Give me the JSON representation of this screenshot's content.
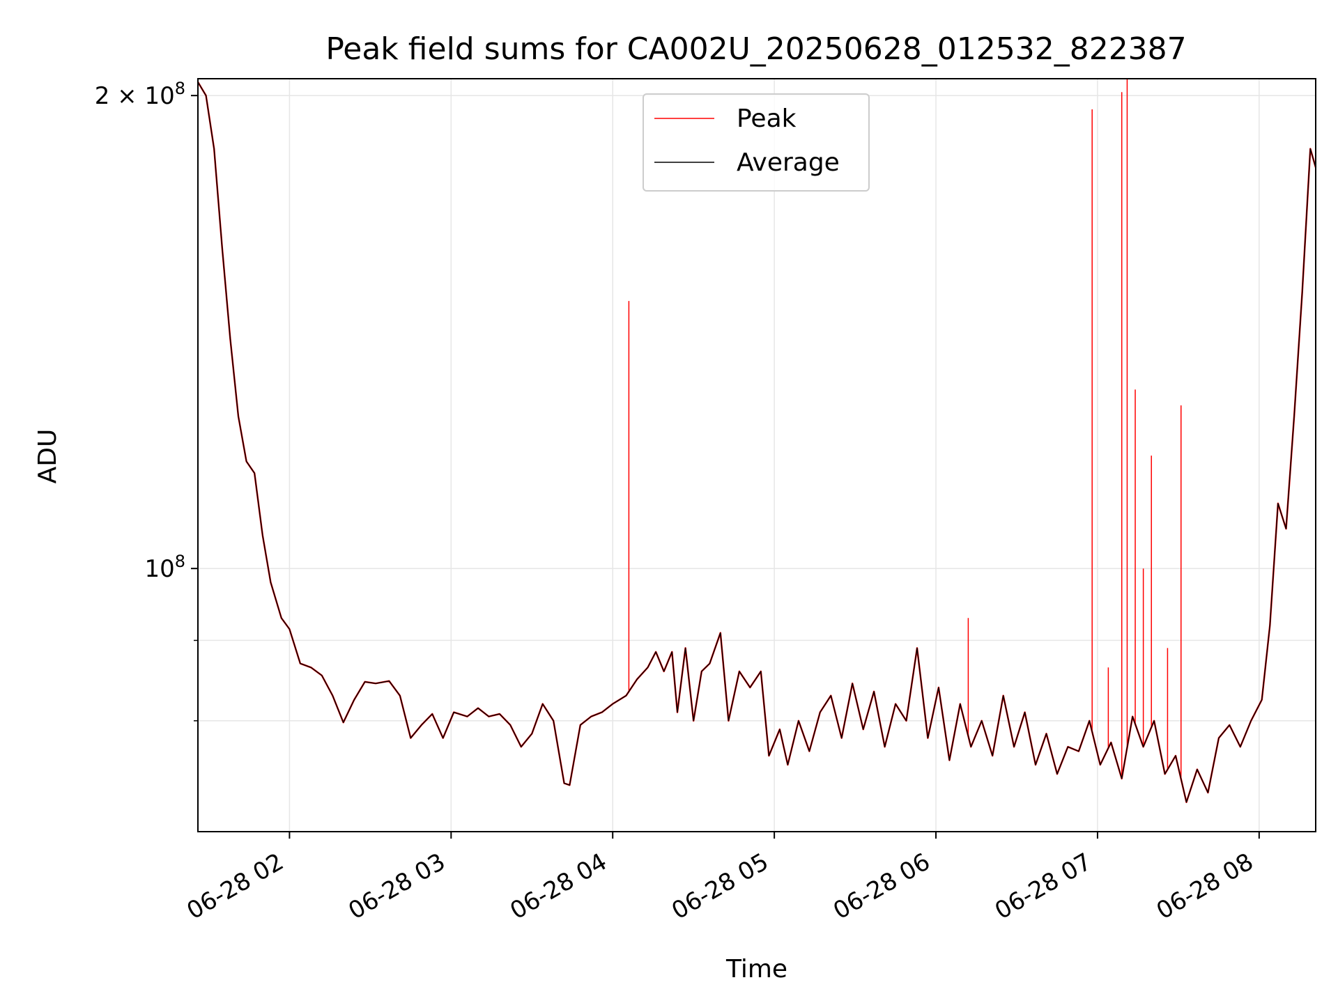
{
  "chart_data": {
    "type": "line",
    "title": "Peak field sums for CA002U_20250628_012532_822387",
    "xlabel": "Time",
    "ylabel": "ADU",
    "yscale": "log",
    "xlim": [
      "2025-06-28 01:26",
      "2025-06-28 08:21"
    ],
    "ylim": [
      68000000,
      205000000
    ],
    "grid": true,
    "legend_position": "top-center",
    "x_ticks": [
      {
        "t": "2025-06-28 02:00",
        "label": "06-28 02"
      },
      {
        "t": "2025-06-28 03:00",
        "label": "06-28 03"
      },
      {
        "t": "2025-06-28 04:00",
        "label": "06-28 04"
      },
      {
        "t": "2025-06-28 05:00",
        "label": "06-28 05"
      },
      {
        "t": "2025-06-28 06:00",
        "label": "06-28 06"
      },
      {
        "t": "2025-06-28 07:00",
        "label": "06-28 07"
      },
      {
        "t": "2025-06-28 08:00",
        "label": "06-28 08"
      }
    ],
    "y_ticks_major": [
      {
        "value": 100000000,
        "base": "10",
        "exp": "8",
        "coef": ""
      },
      {
        "value": 200000000,
        "base": "10",
        "exp": "8",
        "coef": "2 × "
      }
    ],
    "y_ticks_minor": [
      80000000,
      90000000
    ],
    "series": [
      {
        "name": "Average",
        "color": "#000000",
        "points": [
          [
            "2025-06-28 01:26",
            204000000
          ],
          [
            "2025-06-28 01:29",
            200000000
          ],
          [
            "2025-06-28 01:32",
            185000000
          ],
          [
            "2025-06-28 01:35",
            160000000
          ],
          [
            "2025-06-28 01:38",
            140000000
          ],
          [
            "2025-06-28 01:41",
            125000000
          ],
          [
            "2025-06-28 01:44",
            117000000
          ],
          [
            "2025-06-28 01:47",
            115000000
          ],
          [
            "2025-06-28 01:50",
            105000000
          ],
          [
            "2025-06-28 01:53",
            98000000
          ],
          [
            "2025-06-28 01:57",
            93000000
          ],
          [
            "2025-06-28 02:00",
            91500000
          ],
          [
            "2025-06-28 02:04",
            87000000
          ],
          [
            "2025-06-28 02:08",
            86500000
          ],
          [
            "2025-06-28 02:12",
            85500000
          ],
          [
            "2025-06-28 02:16",
            83000000
          ],
          [
            "2025-06-28 02:20",
            79800000
          ],
          [
            "2025-06-28 02:24",
            82500000
          ],
          [
            "2025-06-28 02:28",
            84700000
          ],
          [
            "2025-06-28 02:32",
            84500000
          ],
          [
            "2025-06-28 02:37",
            84800000
          ],
          [
            "2025-06-28 02:41",
            83000000
          ],
          [
            "2025-06-28 02:45",
            78000000
          ],
          [
            "2025-06-28 02:49",
            79500000
          ],
          [
            "2025-06-28 02:53",
            80800000
          ],
          [
            "2025-06-28 02:57",
            78000000
          ],
          [
            "2025-06-28 03:01",
            81000000
          ],
          [
            "2025-06-28 03:06",
            80500000
          ],
          [
            "2025-06-28 03:10",
            81500000
          ],
          [
            "2025-06-28 03:14",
            80500000
          ],
          [
            "2025-06-28 03:18",
            80800000
          ],
          [
            "2025-06-28 03:22",
            79500000
          ],
          [
            "2025-06-28 03:26",
            77000000
          ],
          [
            "2025-06-28 03:30",
            78500000
          ],
          [
            "2025-06-28 03:34",
            82000000
          ],
          [
            "2025-06-28 03:38",
            80000000
          ],
          [
            "2025-06-28 03:42",
            73000000
          ],
          [
            "2025-06-28 03:44",
            72800000
          ],
          [
            "2025-06-28 03:48",
            79500000
          ],
          [
            "2025-06-28 03:52",
            80500000
          ],
          [
            "2025-06-28 03:56",
            81000000
          ],
          [
            "2025-06-28 04:00",
            82000000
          ],
          [
            "2025-06-28 04:05",
            83000000
          ],
          [
            "2025-06-28 04:09",
            85000000
          ],
          [
            "2025-06-28 04:13",
            86500000
          ],
          [
            "2025-06-28 04:16",
            88500000
          ],
          [
            "2025-06-28 04:19",
            86000000
          ],
          [
            "2025-06-28 04:22",
            88500000
          ],
          [
            "2025-06-28 04:24",
            81000000
          ],
          [
            "2025-06-28 04:27",
            89000000
          ],
          [
            "2025-06-28 04:30",
            80000000
          ],
          [
            "2025-06-28 04:33",
            86000000
          ],
          [
            "2025-06-28 04:36",
            87000000
          ],
          [
            "2025-06-28 04:40",
            91000000
          ],
          [
            "2025-06-28 04:43",
            80000000
          ],
          [
            "2025-06-28 04:47",
            86000000
          ],
          [
            "2025-06-28 04:51",
            84000000
          ],
          [
            "2025-06-28 04:55",
            86000000
          ],
          [
            "2025-06-28 04:58",
            76000000
          ],
          [
            "2025-06-28 05:02",
            79000000
          ],
          [
            "2025-06-28 05:05",
            75000000
          ],
          [
            "2025-06-28 05:09",
            80000000
          ],
          [
            "2025-06-28 05:13",
            76500000
          ],
          [
            "2025-06-28 05:17",
            81000000
          ],
          [
            "2025-06-28 05:21",
            83000000
          ],
          [
            "2025-06-28 05:25",
            78000000
          ],
          [
            "2025-06-28 05:29",
            84500000
          ],
          [
            "2025-06-28 05:33",
            79000000
          ],
          [
            "2025-06-28 05:37",
            83500000
          ],
          [
            "2025-06-28 05:41",
            77000000
          ],
          [
            "2025-06-28 05:45",
            82000000
          ],
          [
            "2025-06-28 05:49",
            80000000
          ],
          [
            "2025-06-28 05:53",
            89000000
          ],
          [
            "2025-06-28 05:57",
            78000000
          ],
          [
            "2025-06-28 06:01",
            84000000
          ],
          [
            "2025-06-28 06:05",
            75500000
          ],
          [
            "2025-06-28 06:09",
            82000000
          ],
          [
            "2025-06-28 06:13",
            77000000
          ],
          [
            "2025-06-28 06:17",
            80000000
          ],
          [
            "2025-06-28 06:21",
            76000000
          ],
          [
            "2025-06-28 06:25",
            83000000
          ],
          [
            "2025-06-28 06:29",
            77000000
          ],
          [
            "2025-06-28 06:33",
            81000000
          ],
          [
            "2025-06-28 06:37",
            75000000
          ],
          [
            "2025-06-28 06:41",
            78500000
          ],
          [
            "2025-06-28 06:45",
            74000000
          ],
          [
            "2025-06-28 06:49",
            77000000
          ],
          [
            "2025-06-28 06:53",
            76500000
          ],
          [
            "2025-06-28 06:57",
            80000000
          ],
          [
            "2025-06-28 07:01",
            75000000
          ],
          [
            "2025-06-28 07:05",
            77500000
          ],
          [
            "2025-06-28 07:09",
            73500000
          ],
          [
            "2025-06-28 07:13",
            80500000
          ],
          [
            "2025-06-28 07:17",
            77000000
          ],
          [
            "2025-06-28 07:21",
            80000000
          ],
          [
            "2025-06-28 07:25",
            74000000
          ],
          [
            "2025-06-28 07:29",
            76000000
          ],
          [
            "2025-06-28 07:33",
            71000000
          ],
          [
            "2025-06-28 07:37",
            74500000
          ],
          [
            "2025-06-28 07:41",
            72000000
          ],
          [
            "2025-06-28 07:45",
            78000000
          ],
          [
            "2025-06-28 07:49",
            79500000
          ],
          [
            "2025-06-28 07:53",
            77000000
          ],
          [
            "2025-06-28 07:57",
            80000000
          ],
          [
            "2025-06-28 08:01",
            82500000
          ],
          [
            "2025-06-28 08:04",
            92000000
          ],
          [
            "2025-06-28 08:07",
            110000000
          ],
          [
            "2025-06-28 08:10",
            106000000
          ],
          [
            "2025-06-28 08:13",
            125000000
          ],
          [
            "2025-06-28 08:16",
            150000000
          ],
          [
            "2025-06-28 08:19",
            185000000
          ],
          [
            "2025-06-28 08:21",
            180000000
          ]
        ]
      },
      {
        "name": "Peak",
        "color": "#ff0000",
        "spikes": [
          [
            "2025-06-28 04:06",
            148000000
          ],
          [
            "2025-06-28 06:12",
            93000000
          ],
          [
            "2025-06-28 06:58",
            196000000
          ],
          [
            "2025-06-28 07:04",
            86500000
          ],
          [
            "2025-06-28 07:09",
            201000000
          ],
          [
            "2025-06-28 07:11",
            205000000
          ],
          [
            "2025-06-28 07:14",
            130000000
          ],
          [
            "2025-06-28 07:17",
            100000000
          ],
          [
            "2025-06-28 07:20",
            118000000
          ],
          [
            "2025-06-28 07:26",
            89000000
          ],
          [
            "2025-06-28 07:31",
            127000000
          ]
        ]
      }
    ]
  }
}
